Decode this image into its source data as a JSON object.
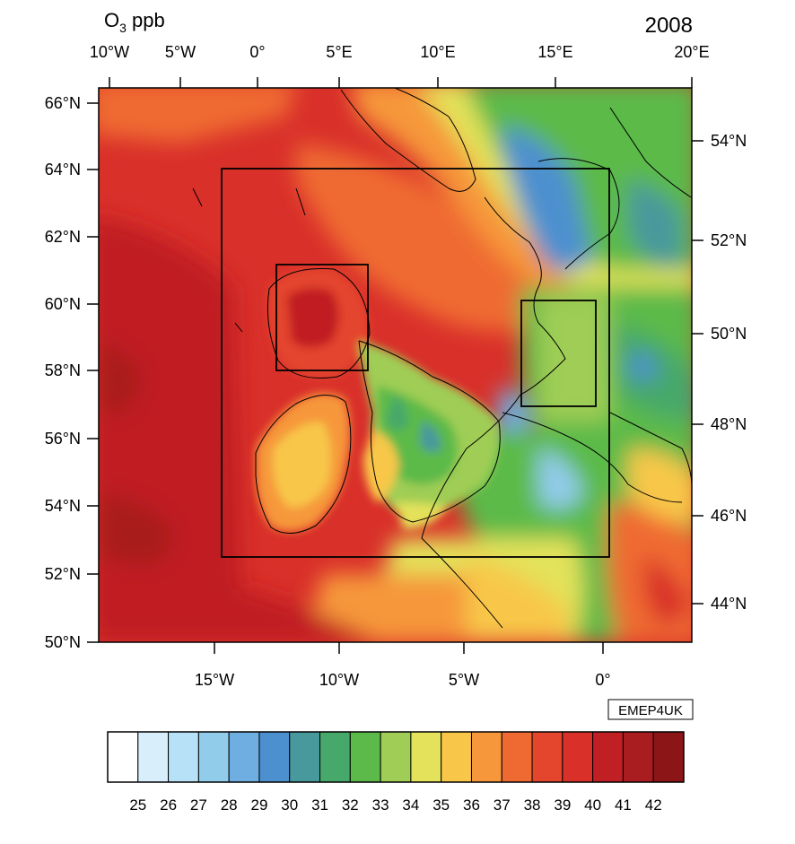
{
  "title": {
    "quantity": "O",
    "subscript": "3",
    "unit": " ppb"
  },
  "year": "2008",
  "credit": "EMEP4UK",
  "top_axis_labels": [
    "10°W",
    "5°W",
    "0°",
    "5°E",
    "10°E",
    "15°E",
    "20°E"
  ],
  "bottom_axis_labels": [
    "15°W",
    "10°W",
    "5°W",
    "0°"
  ],
  "left_axis_labels": [
    "66°N",
    "64°N",
    "62°N",
    "60°N",
    "58°N",
    "56°N",
    "54°N",
    "52°N",
    "50°N"
  ],
  "right_axis_labels": [
    "54°N",
    "52°N",
    "50°N",
    "48°N",
    "46°N",
    "44°N"
  ],
  "colorbar": {
    "labels": [
      "25",
      "26",
      "27",
      "28",
      "29",
      "30",
      "31",
      "32",
      "33",
      "34",
      "35",
      "36",
      "37",
      "38",
      "39",
      "40",
      "41",
      "42"
    ],
    "colors": [
      "#ffffff",
      "#d9eefb",
      "#b7e1f6",
      "#92cceb",
      "#6eaee0",
      "#4d90cf",
      "#48999c",
      "#46a86a",
      "#5bba49",
      "#9fcd55",
      "#e3e25a",
      "#f8c74a",
      "#f6973b",
      "#ef6a33",
      "#e4452d",
      "#d9302a",
      "#c01f24",
      "#a91c1f",
      "#8c1518"
    ]
  },
  "nested_domains": [
    "outer-domain-box",
    "scotland-domain-box",
    "london-domain-box"
  ]
}
